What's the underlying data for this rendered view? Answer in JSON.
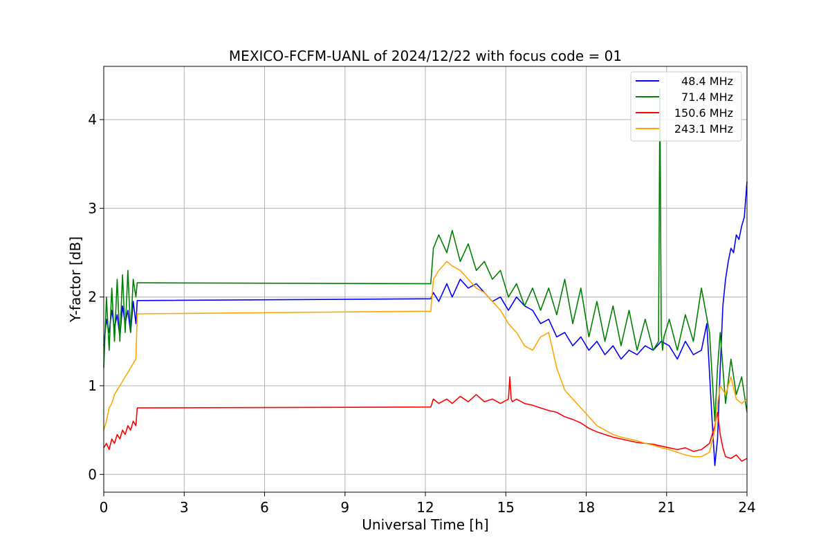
{
  "chart_data": {
    "type": "line",
    "title": "MEXICO-FCFM-UANL of 2024/12/22 with focus code = 01",
    "xlabel": "Universal Time [h]",
    "ylabel": "Y-factor [dB]",
    "xlim": [
      0,
      24
    ],
    "ylim": [
      -0.2,
      4.6
    ],
    "xticks": [
      0,
      3,
      6,
      9,
      12,
      15,
      18,
      21,
      24
    ],
    "yticks": [
      0,
      1,
      2,
      3,
      4
    ],
    "grid": true,
    "legend_position": "top-right",
    "series": [
      {
        "name": "48.4 MHz",
        "color": "#0000ff",
        "x": [
          0,
          0.1,
          0.2,
          0.3,
          0.4,
          0.5,
          0.6,
          0.7,
          0.8,
          0.9,
          1.0,
          1.1,
          1.2,
          1.25,
          1.3,
          12.2,
          12.3,
          12.5,
          12.8,
          13.0,
          13.3,
          13.6,
          13.9,
          14.2,
          14.5,
          14.8,
          15.1,
          15.4,
          15.7,
          16.0,
          16.3,
          16.6,
          16.9,
          17.2,
          17.5,
          17.8,
          18.1,
          18.4,
          18.7,
          19.0,
          19.3,
          19.6,
          19.9,
          20.2,
          20.5,
          20.8,
          21.1,
          21.4,
          21.7,
          22.0,
          22.3,
          22.5,
          22.7,
          22.8,
          22.9,
          23.0,
          23.1,
          23.2,
          23.3,
          23.4,
          23.5,
          23.6,
          23.7,
          23.8,
          23.9,
          24.0
        ],
        "y": [
          1.45,
          1.75,
          1.6,
          1.85,
          1.65,
          1.8,
          1.55,
          1.9,
          1.7,
          1.85,
          1.6,
          1.95,
          1.7,
          1.96,
          1.96,
          1.98,
          2.05,
          1.95,
          2.15,
          2.0,
          2.2,
          2.1,
          2.15,
          2.05,
          1.95,
          2.0,
          1.85,
          2.0,
          1.9,
          1.85,
          1.7,
          1.75,
          1.55,
          1.6,
          1.45,
          1.55,
          1.4,
          1.5,
          1.35,
          1.45,
          1.3,
          1.4,
          1.35,
          1.45,
          1.4,
          1.5,
          1.45,
          1.3,
          1.5,
          1.35,
          1.4,
          1.7,
          0.6,
          0.1,
          0.4,
          1.2,
          1.9,
          2.2,
          2.4,
          2.55,
          2.5,
          2.7,
          2.65,
          2.8,
          2.9,
          3.3
        ]
      },
      {
        "name": "71.4 MHz",
        "color": "#008000",
        "x": [
          0,
          0.1,
          0.2,
          0.3,
          0.4,
          0.5,
          0.6,
          0.7,
          0.8,
          0.9,
          1.0,
          1.1,
          1.2,
          1.25,
          1.3,
          12.2,
          12.3,
          12.5,
          12.8,
          13.0,
          13.3,
          13.6,
          13.9,
          14.2,
          14.5,
          14.8,
          15.1,
          15.4,
          15.7,
          16.0,
          16.3,
          16.6,
          16.9,
          17.2,
          17.5,
          17.8,
          18.1,
          18.4,
          18.7,
          19.0,
          19.3,
          19.6,
          19.9,
          20.2,
          20.5,
          20.7,
          20.75,
          20.8,
          20.85,
          20.9,
          21.1,
          21.4,
          21.7,
          22.0,
          22.3,
          22.6,
          22.8,
          22.9,
          23.0,
          23.2,
          23.4,
          23.6,
          23.8,
          24.0
        ],
        "y": [
          1.2,
          2.0,
          1.4,
          2.1,
          1.5,
          2.2,
          1.5,
          2.25,
          1.6,
          2.3,
          1.6,
          2.2,
          2.0,
          2.16,
          2.16,
          2.15,
          2.55,
          2.7,
          2.5,
          2.75,
          2.4,
          2.6,
          2.3,
          2.4,
          2.2,
          2.3,
          2.0,
          2.15,
          1.9,
          2.1,
          1.85,
          2.1,
          1.8,
          2.2,
          1.7,
          2.1,
          1.55,
          1.95,
          1.5,
          1.9,
          1.45,
          1.85,
          1.4,
          1.75,
          1.4,
          1.5,
          4.35,
          1.6,
          1.4,
          1.55,
          1.75,
          1.4,
          1.8,
          1.5,
          2.1,
          1.6,
          0.6,
          1.2,
          1.6,
          0.8,
          1.3,
          0.9,
          1.1,
          0.7
        ]
      },
      {
        "name": "150.6 MHz",
        "color": "#ff0000",
        "x": [
          0,
          0.1,
          0.2,
          0.3,
          0.4,
          0.5,
          0.6,
          0.7,
          0.8,
          0.9,
          1.0,
          1.1,
          1.2,
          1.25,
          1.3,
          12.2,
          12.3,
          12.5,
          12.8,
          13.0,
          13.3,
          13.6,
          13.9,
          14.2,
          14.5,
          14.8,
          15.1,
          15.15,
          15.2,
          15.25,
          15.4,
          15.7,
          16.0,
          16.3,
          16.6,
          16.9,
          17.2,
          17.5,
          17.8,
          18.1,
          18.4,
          18.7,
          19.0,
          19.3,
          19.6,
          19.9,
          20.2,
          20.5,
          20.8,
          21.1,
          21.4,
          21.7,
          22.0,
          22.3,
          22.6,
          22.8,
          22.9,
          23.0,
          23.1,
          23.2,
          23.4,
          23.6,
          23.8,
          24.0
        ],
        "y": [
          0.3,
          0.35,
          0.28,
          0.4,
          0.35,
          0.45,
          0.4,
          0.5,
          0.45,
          0.55,
          0.5,
          0.6,
          0.55,
          0.75,
          0.75,
          0.76,
          0.85,
          0.8,
          0.85,
          0.8,
          0.88,
          0.82,
          0.9,
          0.82,
          0.85,
          0.8,
          0.85,
          1.1,
          0.85,
          0.82,
          0.85,
          0.8,
          0.78,
          0.75,
          0.72,
          0.7,
          0.65,
          0.62,
          0.58,
          0.52,
          0.48,
          0.45,
          0.42,
          0.4,
          0.38,
          0.36,
          0.35,
          0.34,
          0.32,
          0.3,
          0.28,
          0.3,
          0.26,
          0.28,
          0.35,
          0.55,
          0.7,
          0.45,
          0.3,
          0.2,
          0.18,
          0.22,
          0.15,
          0.18
        ]
      },
      {
        "name": "243.1 MHz",
        "color": "#ffa500",
        "x": [
          0,
          0.1,
          0.2,
          0.3,
          0.4,
          0.5,
          0.6,
          0.7,
          0.8,
          0.9,
          1.0,
          1.1,
          1.2,
          1.25,
          1.3,
          12.2,
          12.3,
          12.5,
          12.8,
          13.0,
          13.3,
          13.6,
          13.9,
          14.2,
          14.5,
          14.8,
          15.1,
          15.4,
          15.7,
          16.0,
          16.3,
          16.6,
          16.9,
          17.2,
          17.5,
          17.8,
          18.1,
          18.4,
          18.7,
          19.0,
          19.3,
          19.6,
          19.9,
          20.2,
          20.5,
          20.8,
          21.1,
          21.4,
          21.7,
          22.0,
          22.3,
          22.6,
          22.8,
          22.9,
          23.0,
          23.2,
          23.4,
          23.6,
          23.8,
          24.0
        ],
        "y": [
          0.5,
          0.6,
          0.75,
          0.8,
          0.9,
          0.95,
          1.0,
          1.05,
          1.1,
          1.15,
          1.2,
          1.25,
          1.3,
          1.81,
          1.81,
          1.84,
          2.2,
          2.3,
          2.4,
          2.35,
          2.3,
          2.2,
          2.1,
          2.05,
          1.95,
          1.85,
          1.7,
          1.6,
          1.45,
          1.4,
          1.55,
          1.6,
          1.2,
          0.95,
          0.85,
          0.75,
          0.65,
          0.55,
          0.5,
          0.45,
          0.42,
          0.4,
          0.38,
          0.35,
          0.33,
          0.3,
          0.28,
          0.25,
          0.22,
          0.2,
          0.2,
          0.25,
          0.5,
          0.8,
          1.0,
          0.9,
          1.1,
          0.85,
          0.8,
          0.85
        ]
      }
    ]
  }
}
